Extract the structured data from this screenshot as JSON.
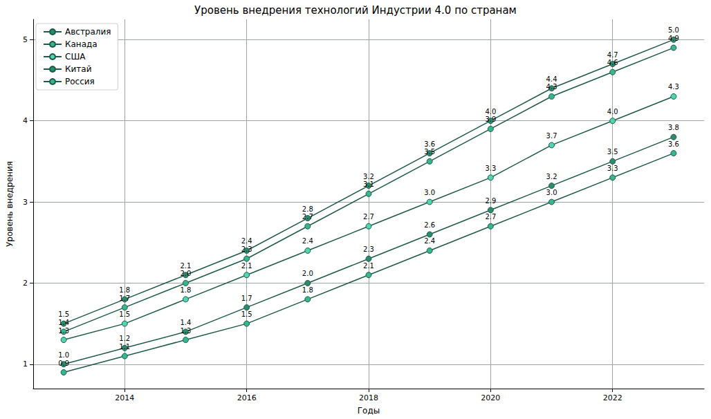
{
  "chart_data": {
    "type": "line",
    "title": "Уровень внедрения технологий Индустрии 4.0 по странам",
    "x_label": "Годы",
    "y_label": "Уровень внедрения",
    "x": [
      2013,
      2014,
      2015,
      2016,
      2017,
      2018,
      2019,
      2020,
      2021,
      2022,
      2023
    ],
    "series": [
      {
        "name": "Австралия",
        "color": "#2a8c6c",
        "marker": "circle",
        "values": [
          1.5,
          1.8,
          2.1,
          2.4,
          2.8,
          3.2,
          3.6,
          4.0,
          4.4,
          4.7,
          5.0
        ],
        "value_labels": [
          "1.5",
          "1.8",
          "2.1",
          "2.4",
          "2.8",
          "3.2",
          "3.6",
          "4.0",
          "4.4",
          "4.7",
          "5.0"
        ]
      },
      {
        "name": "Канада",
        "color": "#36b68e",
        "marker": "circle",
        "values": [
          1.4,
          1.7,
          2.0,
          2.3,
          2.7,
          3.1,
          3.5,
          3.9,
          4.3,
          4.6,
          4.9
        ],
        "value_labels": [
          "1.4",
          "1.7",
          "2.0",
          "2.3",
          "2.7",
          "3.1",
          "3.5",
          "3.9",
          "4.3",
          "4.6",
          "4.9"
        ]
      },
      {
        "name": "США",
        "color": "#4fd6b0",
        "marker": "circle",
        "values": [
          1.3,
          1.5,
          1.8,
          2.1,
          2.4,
          2.7,
          3.0,
          3.3,
          3.7,
          4.0,
          4.3
        ],
        "value_labels": [
          "1.3",
          "1.5",
          "1.8",
          "2.1",
          "2.4",
          "2.7",
          "3.0",
          "3.3",
          "3.7",
          "4.0",
          "4.3"
        ]
      },
      {
        "name": "Китай",
        "color": "#2a8c6c",
        "marker": "circle",
        "values": [
          1.0,
          1.2,
          1.4,
          1.7,
          2.0,
          2.3,
          2.6,
          2.9,
          3.2,
          3.5,
          3.8
        ],
        "value_labels": [
          "1.0",
          "1.2",
          "1.4",
          "1.7",
          "2.0",
          "2.3",
          "2.6",
          "2.9",
          "3.2",
          "3.5",
          "3.8"
        ]
      },
      {
        "name": "Россия",
        "color": "#36b68e",
        "marker": "circle",
        "values": [
          0.9,
          1.1,
          1.3,
          1.5,
          1.8,
          2.1,
          2.4,
          2.7,
          3.0,
          3.3,
          3.6
        ],
        "value_labels": [
          "0.9",
          "1.1",
          "1.3",
          "1.5",
          "1.8",
          "2.1",
          "2.4",
          "2.7",
          "3.0",
          "3.3",
          "3.6"
        ]
      }
    ],
    "xlim": [
      2012.5,
      2023.5
    ],
    "xticks": [
      2014,
      2016,
      2018,
      2020,
      2022
    ],
    "ylim": [
      0.7,
      5.25
    ],
    "yticks": [
      1,
      2,
      3,
      4,
      5
    ],
    "grid": true,
    "legend": "upper left",
    "data_labels": true
  }
}
